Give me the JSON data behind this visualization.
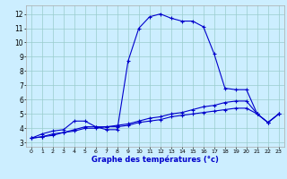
{
  "xlabel": "Graphe des températures (°c)",
  "bg_color": "#cceeff",
  "line_color": "#0000cc",
  "grid_color": "#99cccc",
  "x_ticks": [
    0,
    1,
    2,
    3,
    4,
    5,
    6,
    7,
    8,
    9,
    10,
    11,
    12,
    13,
    14,
    15,
    16,
    17,
    18,
    19,
    20,
    21,
    22,
    23
  ],
  "y_ticks": [
    3,
    4,
    5,
    6,
    7,
    8,
    9,
    10,
    11,
    12
  ],
  "ylim": [
    2.7,
    12.6
  ],
  "xlim": [
    -0.5,
    23.5
  ],
  "series1_x": [
    0,
    1,
    2,
    3,
    4,
    5,
    6,
    7,
    8,
    9,
    10,
    11,
    12,
    13,
    14,
    15,
    16,
    17,
    18,
    19,
    20,
    21,
    22,
    23
  ],
  "series1_y": [
    3.3,
    3.6,
    3.8,
    3.9,
    4.5,
    4.5,
    4.1,
    3.9,
    3.9,
    8.7,
    11.0,
    11.8,
    12.0,
    11.7,
    11.5,
    11.5,
    11.1,
    9.2,
    6.8,
    6.7,
    6.7,
    5.0,
    4.4,
    5.0
  ],
  "series2_x": [
    0,
    1,
    2,
    3,
    4,
    5,
    6,
    7,
    8,
    9,
    10,
    11,
    12,
    13,
    14,
    15,
    16,
    17,
    18,
    19,
    20,
    21,
    22,
    23
  ],
  "series2_y": [
    3.3,
    3.4,
    3.6,
    3.7,
    3.9,
    4.1,
    4.1,
    4.1,
    4.2,
    4.3,
    4.5,
    4.7,
    4.8,
    5.0,
    5.1,
    5.3,
    5.5,
    5.6,
    5.8,
    5.9,
    5.9,
    5.0,
    4.4,
    5.0
  ],
  "series3_x": [
    0,
    1,
    2,
    3,
    4,
    5,
    6,
    7,
    8,
    9,
    10,
    11,
    12,
    13,
    14,
    15,
    16,
    17,
    18,
    19,
    20,
    21,
    22,
    23
  ],
  "series3_y": [
    3.3,
    3.4,
    3.5,
    3.7,
    3.8,
    4.0,
    4.0,
    4.1,
    4.1,
    4.2,
    4.4,
    4.5,
    4.6,
    4.8,
    4.9,
    5.0,
    5.1,
    5.2,
    5.3,
    5.4,
    5.4,
    5.0,
    4.4,
    5.0
  ]
}
